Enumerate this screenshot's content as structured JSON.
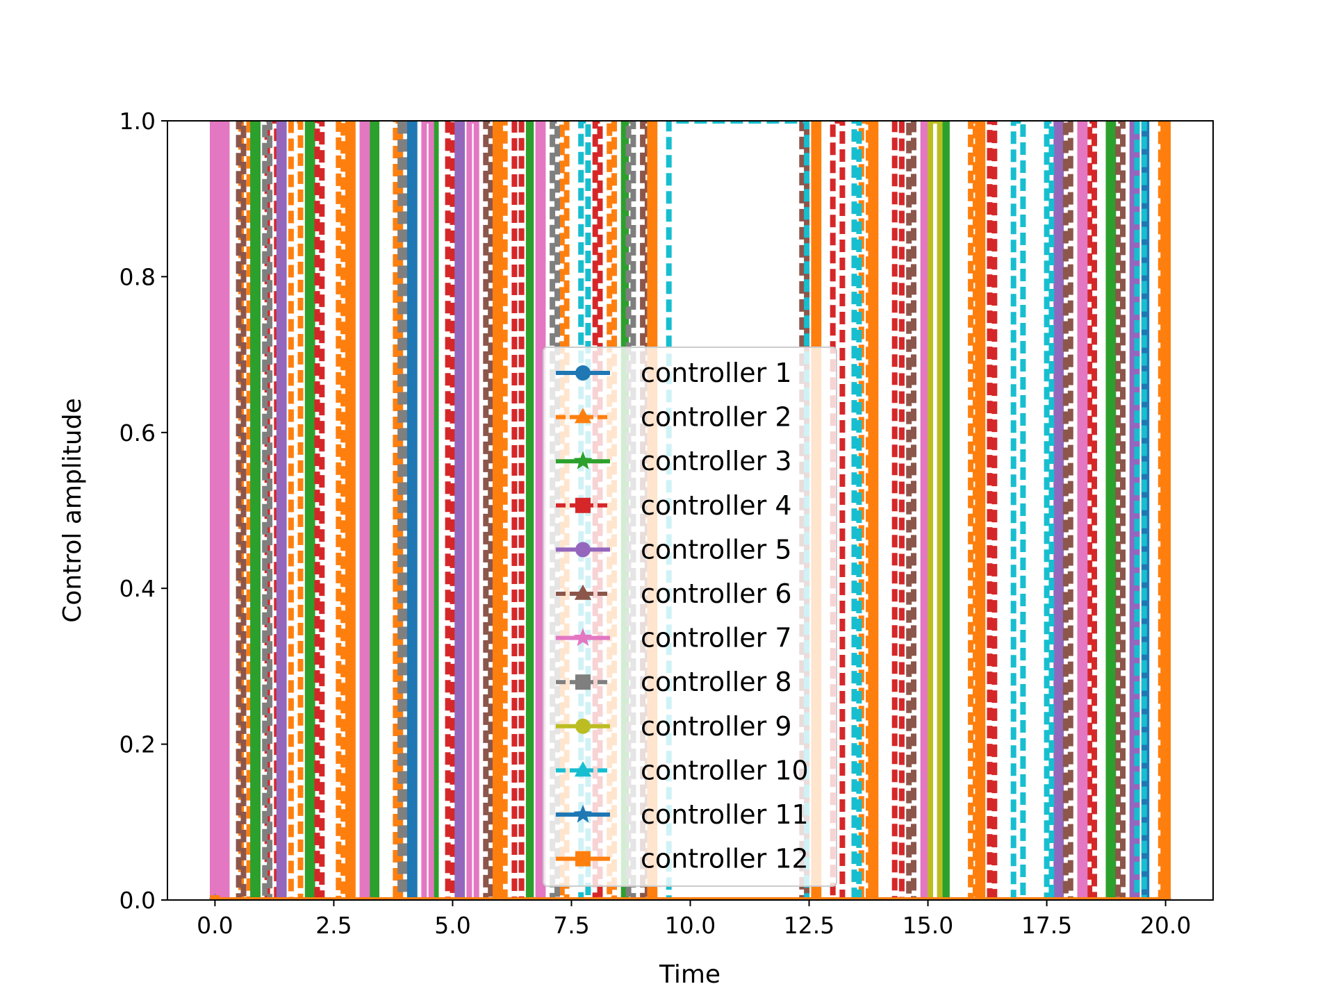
{
  "chart_data": {
    "type": "line",
    "title": "",
    "xlabel": "Time",
    "ylabel": "Control amplitude",
    "xlim": [
      -1.0,
      21.0
    ],
    "ylim": [
      0.0,
      1.0
    ],
    "xticks": [
      "0.0",
      "2.5",
      "5.0",
      "7.5",
      "10.0",
      "12.5",
      "15.0",
      "17.5",
      "20.0"
    ],
    "yticks": [
      "0.0",
      "0.2",
      "0.4",
      "0.6",
      "0.8",
      "1.0"
    ],
    "grid": false,
    "legend_position": "center",
    "description_of_data": "bang-bang controls switching between 0 and 1; each series lists [start,end] time intervals where amplitude is 1",
    "series": [
      {
        "name": "controller 1",
        "color": "#1f77b4",
        "style": "solid",
        "marker": "circle",
        "on_intervals": [
          [
            19.55,
            19.6
          ]
        ]
      },
      {
        "name": "controller 2",
        "color": "#ff7f0e",
        "style": "dashed",
        "marker": "triangle",
        "on_intervals": [
          [
            0.55,
            0.72
          ],
          [
            1.6,
            1.8
          ],
          [
            2.6,
            2.7
          ],
          [
            3.8,
            3.9
          ],
          [
            6.0,
            6.1
          ],
          [
            7.3,
            7.4
          ],
          [
            8.3,
            8.4
          ],
          [
            13.6,
            13.75
          ],
          [
            15.9,
            16.0
          ],
          [
            19.9,
            20.05
          ]
        ]
      },
      {
        "name": "controller 3",
        "color": "#2ca02c",
        "style": "solid",
        "marker": "star",
        "on_intervals": [
          [
            0.8,
            0.9
          ],
          [
            1.95,
            2.05
          ],
          [
            3.3,
            3.4
          ],
          [
            4.6,
            4.65
          ],
          [
            6.6,
            6.65
          ],
          [
            8.6,
            8.65
          ],
          [
            15.3,
            15.4
          ],
          [
            18.8,
            18.9
          ]
        ]
      },
      {
        "name": "controller 4",
        "color": "#d62728",
        "style": "dashed",
        "marker": "square",
        "on_intervals": [
          [
            1.1,
            1.3
          ],
          [
            2.15,
            2.25
          ],
          [
            4.9,
            5.0
          ],
          [
            6.3,
            6.45
          ],
          [
            8.0,
            8.1
          ],
          [
            13.0,
            13.2
          ],
          [
            14.3,
            14.45
          ],
          [
            16.3,
            16.4
          ],
          [
            18.4,
            18.5
          ]
        ]
      },
      {
        "name": "controller 5",
        "color": "#9467bd",
        "style": "solid",
        "marker": "circle",
        "on_intervals": [
          [
            1.35,
            1.45
          ],
          [
            5.1,
            5.2
          ],
          [
            17.7,
            17.8
          ],
          [
            19.3,
            19.4
          ]
        ]
      },
      {
        "name": "controller 6",
        "color": "#8c564b",
        "style": "dashed",
        "marker": "triangle",
        "on_intervals": [
          [
            0.5,
            0.6
          ],
          [
            5.7,
            5.8
          ],
          [
            9.0,
            9.1
          ],
          [
            12.35,
            12.45
          ],
          [
            14.6,
            14.7
          ],
          [
            17.9,
            18.0
          ],
          [
            19.0,
            19.1
          ]
        ]
      },
      {
        "name": "controller 7",
        "color": "#e377c2",
        "style": "solid",
        "marker": "star",
        "on_intervals": [
          [
            -0.05,
            0.05
          ],
          [
            0.15,
            0.25
          ],
          [
            3.1,
            3.2
          ],
          [
            4.4,
            4.55
          ],
          [
            5.35,
            5.5
          ],
          [
            6.8,
            6.9
          ],
          [
            14.9,
            15.0
          ],
          [
            18.2,
            18.3
          ]
        ]
      },
      {
        "name": "controller 8",
        "color": "#7f7f7f",
        "style": "dashed",
        "marker": "square",
        "on_intervals": [
          [
            1.05,
            1.15
          ],
          [
            3.9,
            4.0
          ],
          [
            7.1,
            7.2
          ],
          [
            8.7,
            8.8
          ]
        ]
      },
      {
        "name": "controller 9",
        "color": "#bcbd22",
        "style": "solid",
        "marker": "circle",
        "on_intervals": [
          [
            15.05,
            15.25
          ]
        ]
      },
      {
        "name": "controller 10",
        "color": "#17becf",
        "style": "dashed",
        "marker": "triangle",
        "on_intervals": [
          [
            7.7,
            7.85
          ],
          [
            9.55,
            12.45
          ],
          [
            13.45,
            13.55
          ],
          [
            16.8,
            17.0
          ],
          [
            17.5,
            17.6
          ],
          [
            19.4,
            19.55
          ]
        ]
      },
      {
        "name": "controller 11",
        "color": "#1f77b4",
        "style": "solid",
        "marker": "star",
        "on_intervals": [
          [
            4.1,
            4.2
          ]
        ]
      },
      {
        "name": "controller 12",
        "color": "#ff7f0e",
        "style": "solid",
        "marker": "square",
        "on_intervals": [
          [
            2.8,
            2.9
          ],
          [
            5.9,
            6.0
          ],
          [
            9.15,
            9.25
          ],
          [
            12.6,
            12.7
          ],
          [
            13.8,
            13.9
          ],
          [
            16.05,
            16.15
          ],
          [
            19.95,
            20.05
          ]
        ]
      }
    ]
  }
}
